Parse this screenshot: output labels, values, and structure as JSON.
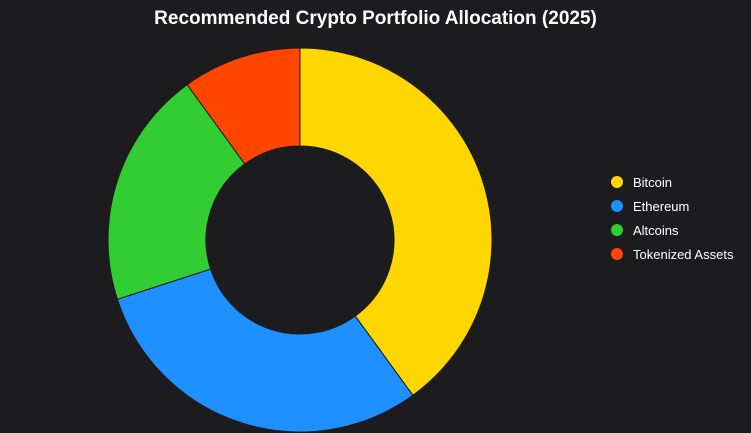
{
  "chart_data": {
    "type": "pie",
    "variant": "doughnut",
    "title": "Recommended Crypto Portfolio Allocation (2025)",
    "categories": [
      "Bitcoin",
      "Ethereum",
      "Altcoins",
      "Tokenized Assets"
    ],
    "values": [
      40,
      30,
      20,
      10
    ],
    "colors": [
      "#ffd700",
      "#1e90ff",
      "#32cd32",
      "#ff4500"
    ],
    "legend_position": "right"
  },
  "colors": {
    "background": "#1c1c1e",
    "text": "#ffffff",
    "slice_border": "#1c1c1e"
  }
}
